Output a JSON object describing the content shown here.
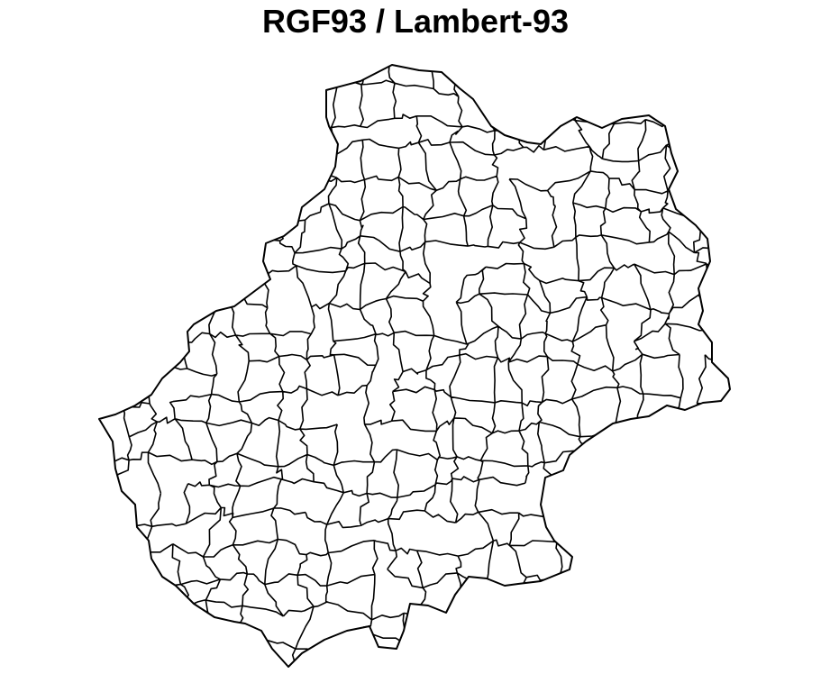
{
  "title": "RGF93 / Lambert-93"
}
